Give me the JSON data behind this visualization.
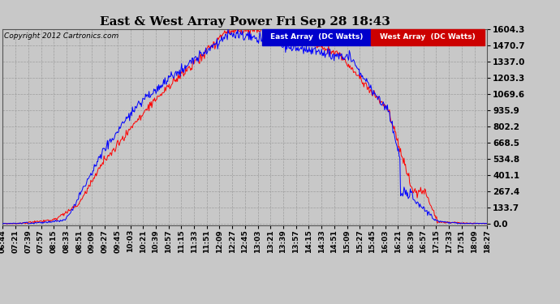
{
  "title": "East & West Array Power Fri Sep 28 18:43",
  "copyright": "Copyright 2012 Cartronics.com",
  "east_label": "East Array  (DC Watts)",
  "west_label": "West Array  (DC Watts)",
  "east_color": "#0000ff",
  "west_color": "#ff0000",
  "east_legend_bg": "#0000cc",
  "west_legend_bg": "#cc0000",
  "fig_bg": "#c8c8c8",
  "plot_bg": "#c8c8c8",
  "yticks": [
    0.0,
    133.7,
    267.4,
    401.1,
    534.8,
    668.5,
    802.2,
    935.9,
    1069.6,
    1203.3,
    1337.0,
    1470.7,
    1604.3
  ],
  "ymax": 1604.3,
  "xtick_labels": [
    "06:44",
    "07:21",
    "07:39",
    "07:57",
    "08:15",
    "08:33",
    "08:51",
    "09:09",
    "09:27",
    "09:45",
    "10:03",
    "10:21",
    "10:39",
    "10:57",
    "11:15",
    "11:33",
    "11:51",
    "12:09",
    "12:27",
    "12:45",
    "13:03",
    "13:21",
    "13:39",
    "13:57",
    "14:15",
    "14:33",
    "14:51",
    "15:09",
    "15:27",
    "15:45",
    "16:03",
    "16:21",
    "16:39",
    "16:57",
    "17:15",
    "17:33",
    "17:51",
    "18:09",
    "18:27"
  ],
  "total_minutes": 703,
  "seed": 12345
}
